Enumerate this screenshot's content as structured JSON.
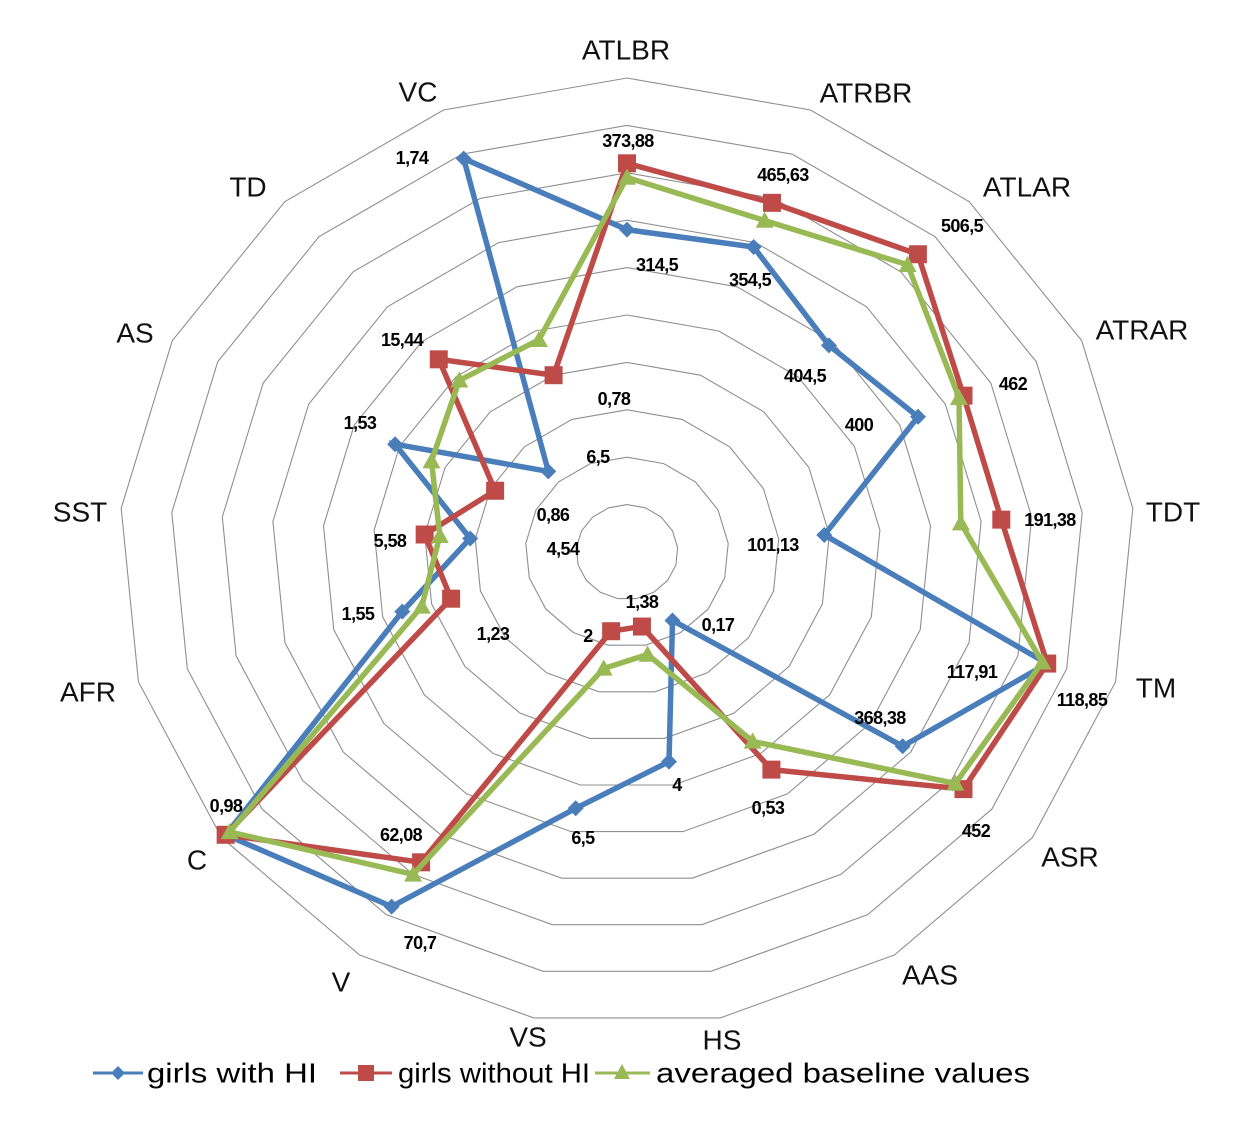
{
  "chart_data": {
    "type": "radar",
    "title": "",
    "scale": "normalized (0 = center, 1 = outer ring)",
    "range": [
      0,
      1
    ],
    "rings": 10,
    "grid": true,
    "legend_position": "bottom",
    "categories": [
      "ATLBR",
      "ATRBR",
      "ATLAR",
      "ATRAR",
      "TDT",
      "TM",
      "ASR",
      "AAS",
      "HS",
      "VS",
      "V",
      "C",
      "AFR",
      "SST",
      "AS",
      "TD",
      "VC"
    ],
    "series": [
      {
        "name": "girls with HI",
        "color": "#4a7ebb",
        "marker": "diamond",
        "values": [
          0.68,
          0.69,
          0.59,
          0.64,
          0.39,
          0.86,
          0.68,
          0.17,
          0.45,
          0.55,
          0.88,
          0.99,
          0.46,
          0.31,
          0.51,
          0.23,
          0.89
        ]
      },
      {
        "name": "girls without HI",
        "color": "#be4b48",
        "marker": "square",
        "values": [
          0.82,
          0.79,
          0.85,
          0.74,
          0.74,
          0.86,
          0.83,
          0.54,
          0.16,
          0.17,
          0.77,
          0.99,
          0.36,
          0.4,
          0.29,
          0.55,
          0.4
        ]
      },
      {
        "name": "averaged baseline values",
        "color": "#98b954",
        "marker": "triangle",
        "values": [
          0.79,
          0.75,
          0.82,
          0.73,
          0.66,
          0.85,
          0.81,
          0.47,
          0.22,
          0.25,
          0.8,
          0.98,
          0.42,
          0.37,
          0.43,
          0.49,
          0.48
        ]
      }
    ],
    "data_labels": [
      {
        "text": "373,88",
        "series": "girls without HI",
        "category": "ATLBR"
      },
      {
        "text": "314,5",
        "series": "girls with HI",
        "category": "ATLBR"
      },
      {
        "text": "465,63",
        "series": "girls without HI",
        "category": "ATRBR"
      },
      {
        "text": "354,5",
        "series": "girls with HI",
        "category": "ATRBR"
      },
      {
        "text": "506,5",
        "series": "girls without HI",
        "category": "ATLAR"
      },
      {
        "text": "404,5",
        "series": "girls with HI",
        "category": "ATLAR"
      },
      {
        "text": "462",
        "series": "girls without HI",
        "category": "ATRAR"
      },
      {
        "text": "400",
        "series": "girls with HI",
        "category": "ATRAR"
      },
      {
        "text": "191,38",
        "series": "girls without HI",
        "category": "TDT"
      },
      {
        "text": "101,13",
        "series": "girls with HI",
        "category": "TDT"
      },
      {
        "text": "118,85",
        "series": "girls without HI",
        "category": "TM"
      },
      {
        "text": "117,91",
        "series": "girls with HI",
        "category": "TM"
      },
      {
        "text": "452",
        "series": "girls without HI",
        "category": "ASR"
      },
      {
        "text": "368,38",
        "series": "girls with HI",
        "category": "ASR"
      },
      {
        "text": "0,53",
        "series": "girls without HI",
        "category": "AAS"
      },
      {
        "text": "0,17",
        "series": "girls with HI",
        "category": "AAS"
      },
      {
        "text": "1,38",
        "series": "girls without HI",
        "category": "HS"
      },
      {
        "text": "4",
        "series": "girls with HI",
        "category": "HS"
      },
      {
        "text": "2",
        "series": "girls without HI",
        "category": "VS"
      },
      {
        "text": "6,5",
        "series": "girls with HI",
        "category": "VS"
      },
      {
        "text": "62,08",
        "series": "girls without HI",
        "category": "V"
      },
      {
        "text": "70,7",
        "series": "girls with HI",
        "category": "V"
      },
      {
        "text": "0,98",
        "series": "girls without HI",
        "category": "C"
      },
      {
        "text": "1,23",
        "series": "girls without HI",
        "category": "AFR"
      },
      {
        "text": "1,55",
        "series": "girls with HI",
        "category": "AFR"
      },
      {
        "text": "5,58",
        "series": "girls without HI",
        "category": "SST"
      },
      {
        "text": "4,54",
        "series": "girls with HI",
        "category": "SST"
      },
      {
        "text": "0,86",
        "series": "girls without HI",
        "category": "AS"
      },
      {
        "text": "1,53",
        "series": "girls with HI",
        "category": "AS"
      },
      {
        "text": "15,44",
        "series": "girls without HI",
        "category": "TD"
      },
      {
        "text": "6,5",
        "series": "girls with HI",
        "category": "TD"
      },
      {
        "text": "0,78",
        "series": "girls without HI",
        "category": "VC"
      },
      {
        "text": "1,74",
        "series": "girls with HI",
        "category": "VC"
      }
    ]
  },
  "legend": {
    "items": [
      {
        "label": "girls with HI",
        "color": "#4a7ebb",
        "marker": "diamond"
      },
      {
        "label": "girls without HI",
        "color": "#be4b48",
        "marker": "square"
      },
      {
        "label": "averaged baseline values",
        "color": "#98b954",
        "marker": "triangle"
      }
    ]
  },
  "grid_color": "#8f8f8f"
}
